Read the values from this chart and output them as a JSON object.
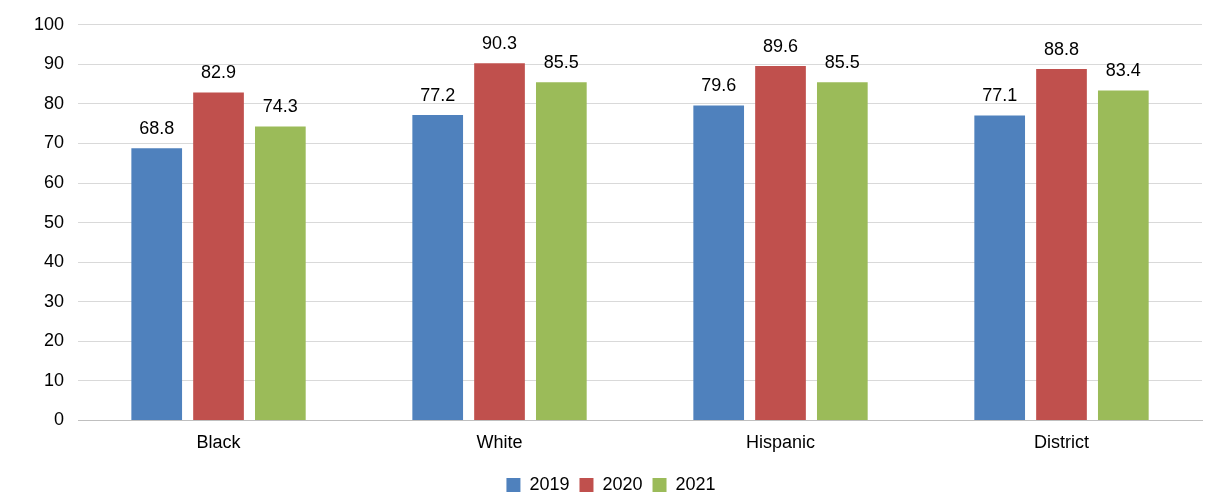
{
  "chart_data": {
    "type": "bar",
    "categories": [
      "Black",
      "White",
      "Hispanic",
      "District"
    ],
    "series": [
      {
        "name": "2019",
        "color": "#4f81bd",
        "values": [
          68.8,
          77.2,
          79.6,
          77.1
        ]
      },
      {
        "name": "2020",
        "color": "#c0504d",
        "values": [
          82.9,
          90.3,
          89.6,
          88.8
        ]
      },
      {
        "name": "2021",
        "color": "#9bbb59",
        "values": [
          74.3,
          85.5,
          85.5,
          83.4
        ]
      }
    ],
    "ylim": [
      0,
      100
    ],
    "yticks": [
      0,
      10,
      20,
      30,
      40,
      50,
      60,
      70,
      80,
      90,
      100
    ],
    "grid": "y",
    "legend": "bottom",
    "data_labels": true
  }
}
